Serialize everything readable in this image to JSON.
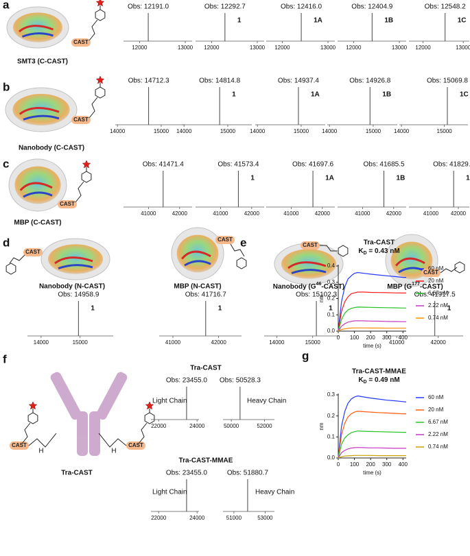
{
  "panel_letters": [
    "a",
    "b",
    "c",
    "d",
    "e",
    "f",
    "g"
  ],
  "cast_tag": "CAST",
  "nh": "H",
  "names": [
    {
      "text": "SMT3 (C-CAST)"
    },
    {
      "text": "Nanobody (C-CAST)"
    },
    {
      "text": "MBP (C-CAST)"
    },
    {
      "text": "Nanobody (N-CAST)"
    },
    {
      "text": "MBP (N-CAST)"
    },
    {
      "text": "Nanobody (G",
      "sup": "46",
      "rest": "-CAST)"
    },
    {
      "text": "MBP (G",
      "sup": "177",
      "rest": "-CAST)"
    },
    {
      "text": "Tra-CAST"
    }
  ],
  "f_titles": [
    "Tra-CAST",
    "Tra-CAST-MMAE"
  ],
  "chains": [
    "Light Chain",
    "Heavy Chain"
  ],
  "spectra": [
    {
      "peak": 12191.0,
      "peak_label": "Obs: 12191.0",
      "xlim": [
        11650,
        13150
      ],
      "xticks": [
        12000,
        13000
      ]
    },
    {
      "peak": 12292.7,
      "peak_label": "Obs: 12292.7",
      "tag": "1",
      "xlim": [
        11650,
        13150
      ],
      "xticks": [
        12000,
        13000
      ]
    },
    {
      "peak": 12416.0,
      "peak_label": "Obs: 12416.0",
      "tag": "1A",
      "xlim": [
        11650,
        13150
      ],
      "xticks": [
        12000,
        13000
      ]
    },
    {
      "peak": 12404.9,
      "peak_label": "Obs: 12404.9",
      "tag": "1B",
      "xlim": [
        11650,
        13150
      ],
      "xticks": [
        12000,
        13000
      ]
    },
    {
      "peak": 12548.2,
      "peak_label": "Obs: 12548.2",
      "tag": "1C",
      "xlim": [
        11650,
        13150
      ],
      "xticks": [
        12000,
        13000
      ]
    },
    {
      "peak": 14712.3,
      "peak_label": "Obs: 14712.3",
      "xlim": [
        13950,
        15550
      ],
      "xticks": [
        14000,
        15000
      ]
    },
    {
      "peak": 14814.8,
      "peak_label": "Obs: 14814.8",
      "tag": "1",
      "xlim": [
        13950,
        15550
      ],
      "xticks": [
        14000,
        15000
      ]
    },
    {
      "peak": 14937.4,
      "peak_label": "Obs: 14937.4",
      "tag": "1A",
      "xlim": [
        13950,
        15550
      ],
      "xticks": [
        14000,
        15000
      ]
    },
    {
      "peak": 14926.8,
      "peak_label": "Obs: 14926.8",
      "tag": "1B",
      "xlim": [
        13950,
        15550
      ],
      "xticks": [
        14000,
        15000
      ]
    },
    {
      "peak": 15069.8,
      "peak_label": "Obs: 15069.8",
      "tag": "1C",
      "xlim": [
        13950,
        15550
      ],
      "xticks": [
        14000,
        15000
      ]
    },
    {
      "peak": 41471.4,
      "peak_label": "Obs: 41471.4",
      "xlim": [
        40200,
        42400
      ],
      "xticks": [
        41000,
        42000
      ]
    },
    {
      "peak": 41573.4,
      "peak_label": "Obs: 41573.4",
      "tag": "1",
      "xlim": [
        40200,
        42400
      ],
      "xticks": [
        41000,
        42000
      ]
    },
    {
      "peak": 41697.6,
      "peak_label": "Obs: 41697.6",
      "tag": "1A",
      "xlim": [
        40200,
        42400
      ],
      "xticks": [
        41000,
        42000
      ]
    },
    {
      "peak": 41685.5,
      "peak_label": "Obs: 41685.5",
      "tag": "1B",
      "xlim": [
        40200,
        42400
      ],
      "xticks": [
        41000,
        42000
      ]
    },
    {
      "peak": 41829.2,
      "peak_label": "Obs: 41829.2",
      "tag": "1C",
      "xlim": [
        40200,
        42400
      ],
      "xticks": [
        41000,
        42000
      ]
    },
    {
      "peak": 14958.9,
      "peak_label": "Obs: 14958.9",
      "tag": "1",
      "xlim": [
        13650,
        15850
      ],
      "xticks": [
        14000,
        15000
      ]
    },
    {
      "peak": 41716.7,
      "peak_label": "Obs: 41716.7",
      "tag": "1",
      "xlim": [
        40700,
        42500
      ],
      "xticks": [
        41000,
        42000
      ]
    },
    {
      "peak": 15102.3,
      "peak_label": "Obs: 15102.3",
      "tag": "1",
      "xlim": [
        13650,
        15750
      ],
      "xticks": [
        14000,
        15000
      ]
    },
    {
      "peak": 41917.5,
      "peak_label": "Obs: 41917.5",
      "tag": "1",
      "xlim": [
        40700,
        42600
      ],
      "xticks": [
        41000,
        42000
      ]
    },
    {
      "peak": 23455.0,
      "peak_label": "Obs: 23455.0",
      "xlim": [
        21600,
        24100
      ],
      "xticks": [
        22000,
        24000
      ]
    },
    {
      "peak": 50528.3,
      "peak_label": "Obs: 50528.3",
      "xlim": [
        49500,
        52600
      ],
      "xticks": [
        50000,
        52000
      ]
    },
    {
      "peak": 23455.0,
      "peak_label": "Obs: 23455.0",
      "xlim": [
        21600,
        24100
      ],
      "xticks": [
        22000,
        24000
      ]
    },
    {
      "peak": 51880.7,
      "peak_label": "Obs: 51880.7",
      "xlim": [
        50300,
        53600
      ],
      "xticks": [
        51000,
        53000
      ]
    }
  ],
  "bli": [
    {
      "title": "Tra-CAST",
      "kd": [
        "K",
        "D",
        " = 0.43 nM"
      ],
      "x_label": "time (s)",
      "y_label": "nm",
      "xlim": [
        0,
        420
      ],
      "ylim": [
        0,
        0.4
      ],
      "xticks": [
        0,
        100,
        200,
        300,
        400
      ],
      "yticks": [
        {
          "value": 0,
          "label": "0.0"
        },
        0.1,
        0.2,
        0.3,
        0.4
      ],
      "x": [
        0,
        20,
        40,
        60,
        80,
        100,
        120,
        160,
        200,
        250,
        300,
        350,
        400,
        420
      ],
      "series": [
        {
          "name": "60 nM",
          "color": "#2437ff",
          "values": [
            0,
            0.18,
            0.27,
            0.32,
            0.34,
            0.355,
            0.36,
            0.355,
            0.35,
            0.345,
            0.34,
            0.335,
            0.33,
            0.33
          ]
        },
        {
          "name": "20 nM",
          "color": "#ff1a1a",
          "values": [
            0,
            0.12,
            0.18,
            0.21,
            0.23,
            0.235,
            0.24,
            0.24,
            0.238,
            0.237,
            0.236,
            0.235,
            0.234,
            0.234
          ]
        },
        {
          "name": "6.67 nM",
          "color": "#22c422",
          "values": [
            0,
            0.07,
            0.11,
            0.13,
            0.14,
            0.145,
            0.148,
            0.147,
            0.146,
            0.145,
            0.144,
            0.143,
            0.142,
            0.142
          ]
        },
        {
          "name": "2.22 nM",
          "color": "#c535c5",
          "values": [
            0,
            0.03,
            0.045,
            0.055,
            0.06,
            0.063,
            0.064,
            0.063,
            0.062,
            0.061,
            0.06,
            0.059,
            0.058,
            0.058
          ]
        },
        {
          "name": "0.74 nM",
          "color": "#ff8c00",
          "values": [
            0,
            0.01,
            0.014,
            0.017,
            0.019,
            0.02,
            0.02,
            0.02,
            0.019,
            0.019,
            0.018,
            0.018,
            0.018,
            0.018
          ]
        }
      ]
    },
    {
      "title": "Tra-CAST-MMAE",
      "kd": [
        "K",
        "D",
        " = 0.49 nM"
      ],
      "x_label": "time (s)",
      "y_label": "nm",
      "xlim": [
        0,
        420
      ],
      "ylim": [
        0,
        0.3
      ],
      "xticks": [
        0,
        100,
        200,
        300,
        400
      ],
      "yticks": [
        {
          "value": 0,
          "label": "0.0"
        },
        0.1,
        0.2,
        0.3
      ],
      "x": [
        0,
        20,
        40,
        60,
        80,
        100,
        120,
        160,
        200,
        250,
        300,
        350,
        400,
        420
      ],
      "series": [
        {
          "name": "60 nM",
          "color": "#2437ff",
          "values": [
            0,
            0.15,
            0.22,
            0.26,
            0.28,
            0.29,
            0.295,
            0.29,
            0.285,
            0.28,
            0.275,
            0.272,
            0.268,
            0.266
          ]
        },
        {
          "name": "20 nM",
          "color": "#ff5a10",
          "values": [
            0,
            0.11,
            0.165,
            0.195,
            0.21,
            0.218,
            0.222,
            0.22,
            0.218,
            0.216,
            0.214,
            0.212,
            0.21,
            0.21
          ]
        },
        {
          "name": "6.67 nM",
          "color": "#22c422",
          "values": [
            0,
            0.065,
            0.095,
            0.11,
            0.12,
            0.125,
            0.128,
            0.127,
            0.126,
            0.125,
            0.124,
            0.123,
            0.122,
            0.122
          ]
        },
        {
          "name": "2.22 nM",
          "color": "#c535c5",
          "values": [
            0,
            0.025,
            0.036,
            0.043,
            0.047,
            0.049,
            0.05,
            0.049,
            0.048,
            0.048,
            0.047,
            0.046,
            0.046,
            0.046
          ]
        },
        {
          "name": "0.74 nM",
          "color": "#c8a000",
          "values": [
            0,
            0.006,
            0.009,
            0.01,
            0.011,
            0.012,
            0.012,
            0.012,
            0.012,
            0.011,
            0.011,
            0.011,
            0.011,
            0.011
          ]
        }
      ]
    }
  ]
}
